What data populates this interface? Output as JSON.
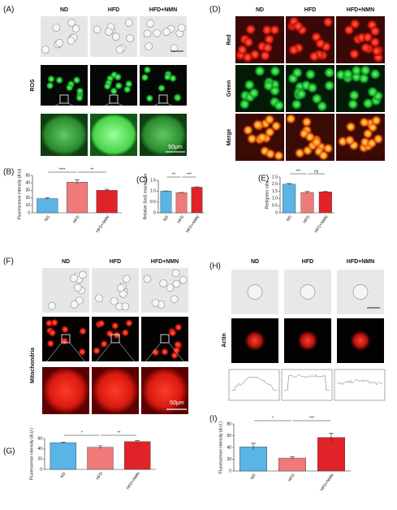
{
  "panels": {
    "A": {
      "label": "(A)",
      "columns": [
        "ND",
        "HFD",
        "HFD+NMN"
      ],
      "row_label": "ROS",
      "scale": "50μm"
    },
    "D": {
      "label": "(D)",
      "columns": [
        "ND",
        "HFD",
        "HFD+NMN"
      ],
      "rows": [
        "Red",
        "Green",
        "Merge"
      ]
    },
    "F": {
      "label": "(F)",
      "columns": [
        "ND",
        "HFD",
        "HFD+NMN"
      ],
      "row_label": "Mitochondria",
      "scale": "50μm"
    },
    "H": {
      "label": "(H)",
      "columns": [
        "ND",
        "HFD",
        "HFD+NMN"
      ],
      "row_label": "Actin"
    }
  },
  "chart_data": [
    {
      "type": "bar",
      "panel_label": "(B)",
      "ylabel": "Fluorescence intensity (A.U)",
      "categories": [
        "ND",
        "HFD",
        "HFD+NMN"
      ],
      "values": [
        19,
        41,
        30
      ],
      "errors": [
        1,
        3,
        1.5
      ],
      "colors": [
        "#5ab4e6",
        "#f07a7a",
        "#e02328"
      ],
      "ylim": [
        0,
        50
      ],
      "yticks": [
        0,
        10,
        20,
        30,
        40,
        50
      ],
      "significance": [
        {
          "pair": [
            0,
            1
          ],
          "label": "****"
        },
        {
          "pair": [
            1,
            2
          ],
          "label": "**"
        }
      ]
    },
    {
      "type": "bar",
      "panel_label": "(C)",
      "ylabel": "Relative Sod1 expression",
      "categories": [
        "ND",
        "HFD",
        "HFD+NMN"
      ],
      "values": [
        1.0,
        0.93,
        1.18
      ],
      "errors": [
        0.01,
        0.01,
        0.02
      ],
      "colors": [
        "#5ab4e6",
        "#f07a7a",
        "#e02328"
      ],
      "ylim": [
        0,
        1.5
      ],
      "yticks": [
        0,
        {
          "value": 0.5,
          "label": "0.5"
        },
        {
          "value": 1,
          "label": "1.0"
        },
        {
          "value": 1.5,
          "label": "1.5"
        }
      ],
      "significance": [
        {
          "pair": [
            0,
            1
          ],
          "label": "**"
        },
        {
          "pair": [
            1,
            2
          ],
          "label": "***"
        }
      ]
    },
    {
      "type": "bar",
      "panel_label": "(E)",
      "ylabel": "Red/green ratio",
      "categories": [
        "ND",
        "HFD",
        "HFD+NMN"
      ],
      "values": [
        2.0,
        1.42,
        1.46
      ],
      "errors": [
        0.05,
        0.07,
        0.03
      ],
      "colors": [
        "#5ab4e6",
        "#f07a7a",
        "#e02328"
      ],
      "ylim": [
        0,
        2.5
      ],
      "yticks": [
        0,
        {
          "value": 0.5,
          "label": "0.5"
        },
        {
          "value": 1,
          "label": "1.0"
        },
        {
          "value": 1.5,
          "label": "1.5"
        },
        {
          "value": 2,
          "label": "2.0"
        },
        {
          "value": 2.5,
          "label": "2.5"
        }
      ],
      "significance": [
        {
          "pair": [
            0,
            1
          ],
          "label": "***"
        },
        {
          "pair": [
            1,
            2
          ],
          "label": "ns"
        }
      ]
    },
    {
      "type": "bar",
      "panel_label": "(G)",
      "ylabel": "Fluorescence intensity (A.U.)",
      "categories": [
        "ND",
        "HFD",
        "HFD+NMN"
      ],
      "values": [
        52,
        43,
        54
      ],
      "errors": [
        1,
        3,
        2
      ],
      "colors": [
        "#5ab4e6",
        "#f07a7a",
        "#e02328"
      ],
      "ylim": [
        0,
        60
      ],
      "yticks": [
        0,
        20,
        40,
        60
      ],
      "significance": [
        {
          "pair": [
            0,
            1
          ],
          "label": "*"
        },
        {
          "pair": [
            1,
            2
          ],
          "label": "**"
        }
      ]
    },
    {
      "type": "bar",
      "panel_label": "(I)",
      "ylabel": "Fluorescence intensity (A.U.)",
      "categories": [
        "ND",
        "HFD",
        "HFD+NMN"
      ],
      "values": [
        41,
        22,
        57
      ],
      "errors": [
        6,
        2,
        7
      ],
      "colors": [
        "#5ab4e6",
        "#f07a7a",
        "#e02328"
      ],
      "ylim": [
        0,
        80
      ],
      "yticks": [
        0,
        20,
        40,
        60,
        80
      ],
      "significance": [
        {
          "pair": [
            0,
            1
          ],
          "label": "*"
        },
        {
          "pair": [
            1,
            2
          ],
          "label": "***"
        }
      ]
    }
  ]
}
